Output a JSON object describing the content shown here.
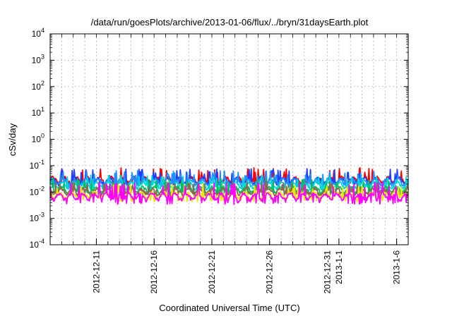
{
  "chart_data": {
    "type": "line",
    "title": "/data/run/goesPlots/archive/2013-01-06/flux/../bryn/31daysEarth.plot",
    "xlabel": "Coordinated Universal Time (UTC)",
    "ylabel": "cSv/day",
    "yscale": "log",
    "ylim": [
      0.0001,
      10000
    ],
    "y_ticks": [
      {
        "base": "10",
        "exp": "-4",
        "value": 0.0001
      },
      {
        "base": "10",
        "exp": "-3",
        "value": 0.001
      },
      {
        "base": "10",
        "exp": "-2",
        "value": 0.01
      },
      {
        "base": "10",
        "exp": "-1",
        "value": 0.1
      },
      {
        "base": "10",
        "exp": "0",
        "value": 1
      },
      {
        "base": "10",
        "exp": "1",
        "value": 10
      },
      {
        "base": "10",
        "exp": "2",
        "value": 100
      },
      {
        "base": "10",
        "exp": "3",
        "value": 1000
      },
      {
        "base": "10",
        "exp": "4",
        "value": 10000
      }
    ],
    "xlim": [
      "2012-12-07",
      "2013-01-07"
    ],
    "x_ticks": [
      "2012-12-11",
      "2012-12-16",
      "2012-12-21",
      "2012-12-26",
      "2012-12-31",
      "2013-1-1",
      "2013-1-6"
    ],
    "x_tick_dates": [
      "2012-12-11",
      "2012-12-16",
      "2012-12-21",
      "2012-12-26",
      "2012-12-31",
      "2013-01-01",
      "2013-01-06"
    ],
    "grid": true,
    "series": [
      {
        "color": "#ff0000",
        "base": 0.03,
        "peak": 0.065,
        "low": 0.025
      },
      {
        "color": "#1f3dff",
        "base": 0.028,
        "peak": 0.06,
        "low": 0.022
      },
      {
        "color": "#1e90ff",
        "base": 0.025,
        "peak": 0.05,
        "low": 0.02
      },
      {
        "color": "#00d8d8",
        "base": 0.019,
        "peak": 0.035,
        "low": 0.015
      },
      {
        "color": "#00c060",
        "base": 0.013,
        "peak": 0.025,
        "low": 0.01
      },
      {
        "color": "#8a6a50",
        "base": 0.011,
        "peak": 0.02,
        "low": 0.008
      },
      {
        "color": "#e8e800",
        "base": 0.008,
        "peak": 0.016,
        "low": 0.005
      },
      {
        "color": "#ff00ff",
        "base": 0.007,
        "peak": 0.018,
        "low": 0.004
      }
    ]
  }
}
